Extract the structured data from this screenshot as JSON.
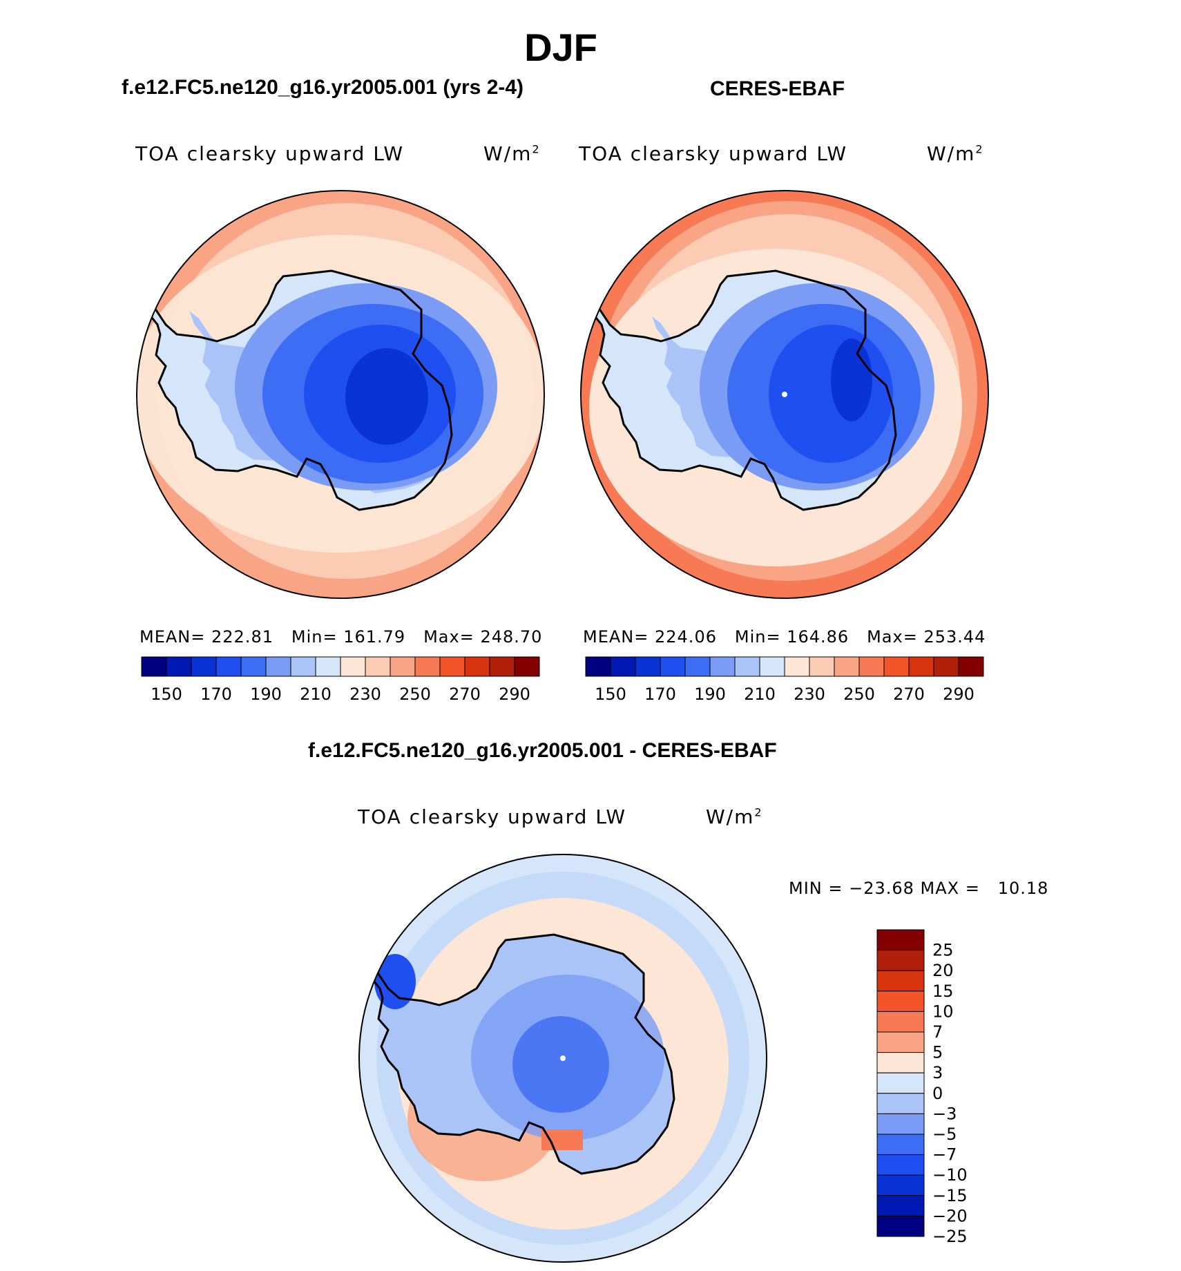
{
  "main_title": "DJF",
  "panels": [
    {
      "title": "f.e12.FC5.ne120_g16.yr2005.001 (yrs 2-4)",
      "variable": "TOA clearsky upward LW",
      "units_base": "W/m",
      "units_exp": "2",
      "stats": {
        "mean_label": "MEAN=",
        "mean": "222.81",
        "min_label": "Min=",
        "min": "161.79",
        "max_label": "Max=",
        "max": "248.70"
      }
    },
    {
      "title": "CERES-EBAF",
      "variable": "TOA clearsky upward LW",
      "units_base": "W/m",
      "units_exp": "2",
      "stats": {
        "mean_label": "MEAN=",
        "mean": "224.06",
        "min_label": "Min=",
        "min": "164.86",
        "max_label": "Max=",
        "max": "253.44"
      }
    },
    {
      "title": "f.e12.FC5.ne120_g16.yr2005.001 - CERES-EBAF",
      "variable": "TOA clearsky upward LW",
      "units_base": "W/m",
      "units_exp": "2",
      "stats_text": "MIN = −23.68 MAX =   10.18"
    }
  ],
  "horizontal_colorbar": {
    "colors": [
      "#000080",
      "#0019b3",
      "#0a33d6",
      "#1f4ff0",
      "#3d6cf5",
      "#7a9cf5",
      "#aac4f7",
      "#d5e5fa",
      "#fde6d6",
      "#fbcbb3",
      "#f9a585",
      "#f77a55",
      "#f4542a",
      "#d8330f",
      "#b01f0a",
      "#840000"
    ],
    "ticks": [
      "150",
      "170",
      "190",
      "210",
      "230",
      "250",
      "270",
      "290"
    ]
  },
  "vertical_colorbar": {
    "colors_top_to_bottom": [
      "#840000",
      "#b01f0a",
      "#d8330f",
      "#f4542a",
      "#f77a55",
      "#f9a585",
      "#fde6d6",
      "#d5e5fa",
      "#aac4f7",
      "#7a9cf5",
      "#3d6cf5",
      "#1f4ff0",
      "#0a33d6",
      "#0019b3",
      "#000080"
    ],
    "ticks": [
      "25",
      "20",
      "15",
      "10",
      "7",
      "5",
      "3",
      "0",
      "−3",
      "−5",
      "−7",
      "−10",
      "−15",
      "−20",
      "−25"
    ]
  },
  "colors": {
    "ocean_warm": "#fbcbb3",
    "ocean_edge": "#f9a585",
    "pale": "#fde6d6",
    "diff_ocean": "#d5e5fa"
  }
}
